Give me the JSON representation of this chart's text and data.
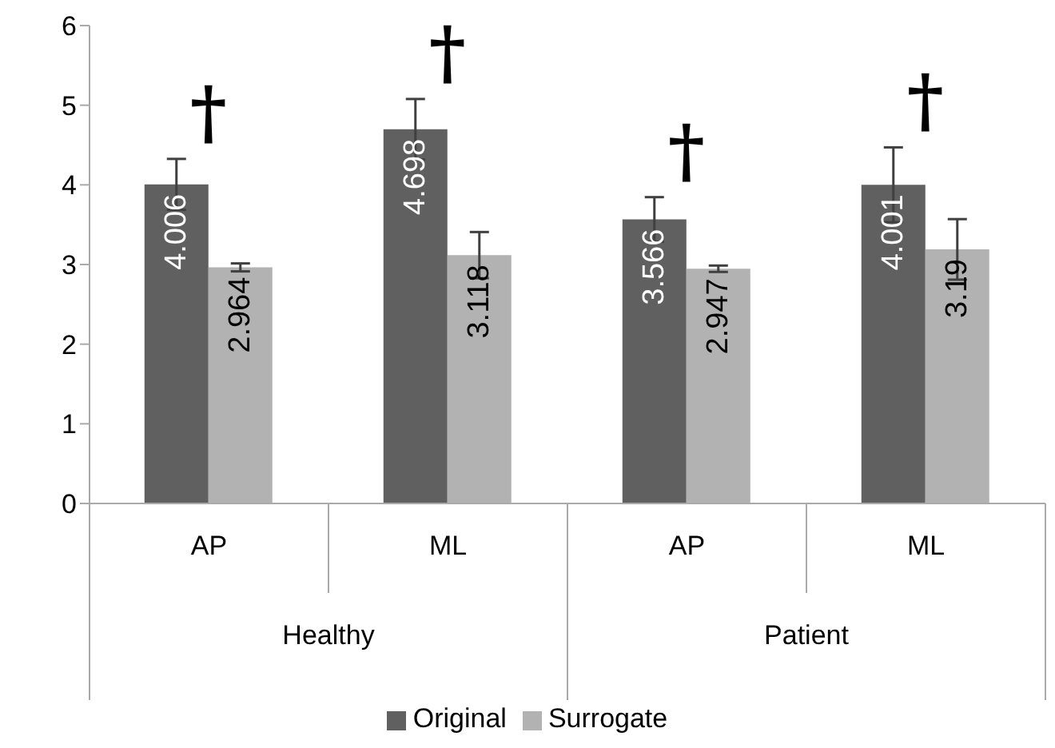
{
  "chart_data": {
    "type": "bar",
    "categories": [
      "AP",
      "ML",
      "AP",
      "ML"
    ],
    "series": [
      {
        "name": "Original",
        "color": "#606060",
        "values": [
          4.006,
          4.698,
          3.566,
          4.001
        ],
        "errors": [
          0.32,
          0.38,
          0.28,
          0.47
        ]
      },
      {
        "name": "Surrogate",
        "color": "#b2b2b2",
        "values": [
          2.964,
          3.118,
          2.947,
          3.19
        ],
        "errors": [
          0.05,
          0.29,
          0.04,
          0.38
        ]
      }
    ],
    "annotations": [
      "Healthy",
      "Patient",
      "†",
      "†",
      "†",
      "†"
    ],
    "data_labels": true,
    "ylim": [
      0,
      6
    ],
    "yticks": [
      0,
      1,
      2,
      3,
      4,
      5,
      6
    ],
    "grid": false,
    "legend": "bottom"
  }
}
